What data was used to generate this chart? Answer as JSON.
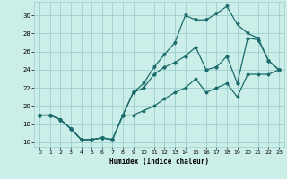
{
  "xlabel": "Humidex (Indice chaleur)",
  "bg_color": "#cceee8",
  "grid_color": "#9ecece",
  "line_color": "#1a6b6b",
  "xlim": [
    -0.5,
    23.5
  ],
  "ylim": [
    15.5,
    31.5
  ],
  "xticks": [
    0,
    1,
    2,
    3,
    4,
    5,
    6,
    7,
    8,
    9,
    10,
    11,
    12,
    13,
    14,
    15,
    16,
    17,
    18,
    19,
    20,
    21,
    22,
    23
  ],
  "yticks": [
    16,
    18,
    20,
    22,
    24,
    26,
    28,
    30
  ],
  "line_upper_x": [
    0,
    1,
    2,
    3,
    4,
    5,
    6,
    7,
    8,
    9,
    10,
    11,
    12,
    13,
    14,
    15,
    16,
    17,
    18,
    19,
    20,
    21,
    22,
    23
  ],
  "line_upper_y": [
    19.0,
    19.0,
    18.5,
    17.5,
    16.3,
    16.3,
    16.5,
    16.3,
    19.0,
    21.5,
    22.5,
    24.3,
    25.7,
    27.0,
    30.0,
    29.5,
    29.5,
    30.2,
    31.0,
    29.0,
    28.0,
    27.5,
    25.0,
    24.0
  ],
  "line_mid_x": [
    0,
    1,
    2,
    3,
    4,
    5,
    6,
    7,
    8,
    9,
    10,
    11,
    12,
    13,
    14,
    15,
    16,
    17,
    18,
    19,
    20,
    21,
    22,
    23
  ],
  "line_mid_y": [
    19.0,
    19.0,
    18.5,
    17.5,
    16.3,
    16.3,
    16.5,
    16.3,
    19.0,
    21.5,
    22.0,
    23.5,
    24.3,
    24.8,
    25.5,
    26.5,
    24.0,
    24.3,
    25.5,
    22.5,
    27.5,
    27.3,
    25.0,
    24.0
  ],
  "line_low_x": [
    0,
    1,
    2,
    3,
    4,
    5,
    6,
    7,
    8,
    9,
    10,
    11,
    12,
    13,
    14,
    15,
    16,
    17,
    18,
    19,
    20,
    21,
    22,
    23
  ],
  "line_low_y": [
    19.0,
    19.0,
    18.5,
    17.5,
    16.3,
    16.3,
    16.5,
    16.3,
    19.0,
    19.0,
    19.5,
    20.0,
    20.8,
    21.5,
    22.0,
    23.0,
    21.5,
    22.0,
    22.5,
    21.0,
    23.5,
    23.5,
    23.5,
    24.0
  ]
}
